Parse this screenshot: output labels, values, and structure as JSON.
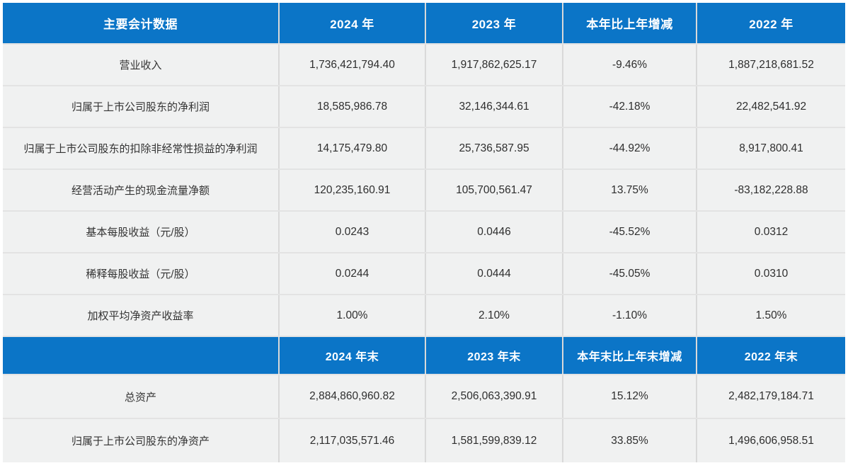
{
  "table": {
    "accent_color": "#0b75c7",
    "row_bg": "#f0f1f1",
    "sections": [
      {
        "header": {
          "label": "主要会计数据",
          "cols": [
            "2024 年",
            "2023 年",
            "本年比上年增减",
            "2022 年"
          ]
        },
        "rows": [
          [
            "营业收入",
            "1,736,421,794.40",
            "1,917,862,625.17",
            "-9.46%",
            "1,887,218,681.52"
          ],
          [
            "归属于上市公司股东的净利润",
            "18,585,986.78",
            "32,146,344.61",
            "-42.18%",
            "22,482,541.92"
          ],
          [
            "归属于上市公司股东的扣除非经常性损益的净利润",
            "14,175,479.80",
            "25,736,587.95",
            "-44.92%",
            "8,917,800.41"
          ],
          [
            "经营活动产生的现金流量净额",
            "120,235,160.91",
            "105,700,561.47",
            "13.75%",
            "-83,182,228.88"
          ],
          [
            "基本每股收益（元/股）",
            "0.0243",
            "0.0446",
            "-45.52%",
            "0.0312"
          ],
          [
            "稀释每股收益（元/股）",
            "0.0244",
            "0.0444",
            "-45.05%",
            "0.0310"
          ],
          [
            "加权平均净资产收益率",
            "1.00%",
            "2.10%",
            "-1.10%",
            "1.50%"
          ]
        ]
      },
      {
        "header": {
          "label": "",
          "cols": [
            "2024 年末",
            "2023 年末",
            "本年末比上年末增减",
            "2022 年末"
          ]
        },
        "rows": [
          [
            "总资产",
            "2,884,860,960.82",
            "2,506,063,390.91",
            "15.12%",
            "2,482,179,184.71"
          ],
          [
            "归属于上市公司股东的净资产",
            "2,117,035,571.46",
            "1,581,599,839.12",
            "33.85%",
            "1,496,606,958.51"
          ]
        ]
      }
    ]
  }
}
